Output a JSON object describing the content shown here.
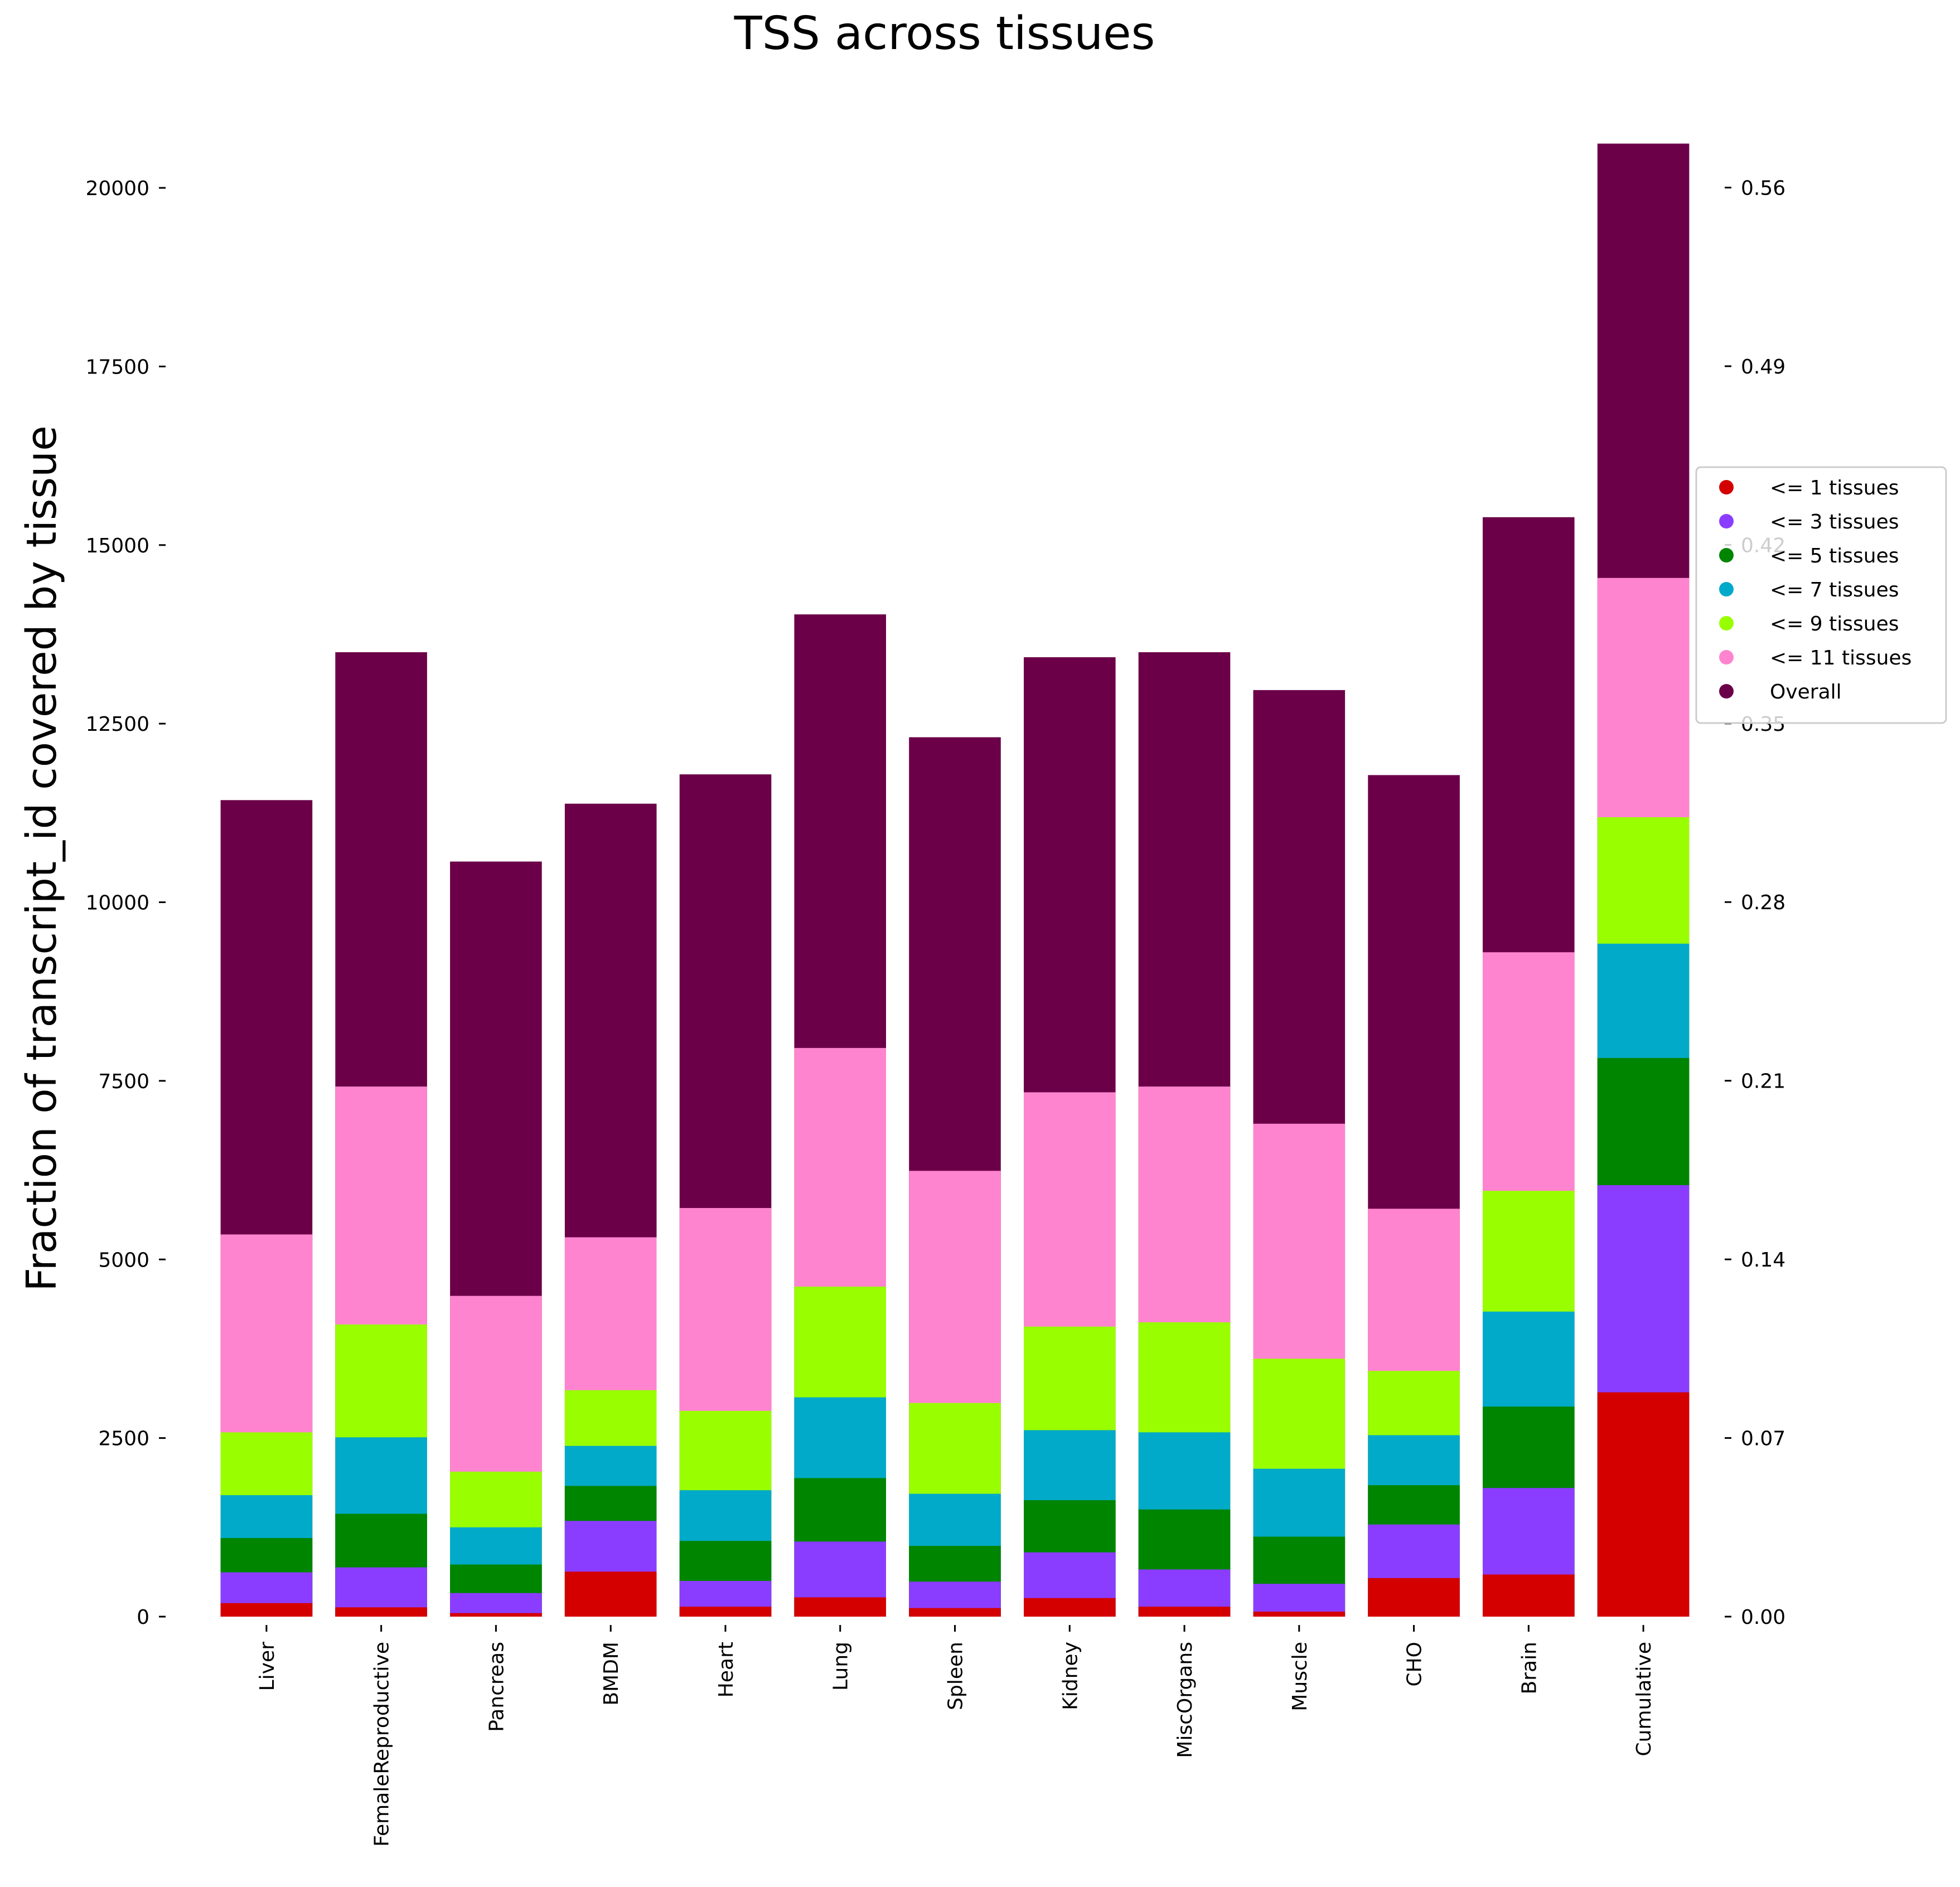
{
  "chart_data": {
    "type": "bar",
    "stacked": true,
    "title": "TSS across tissues",
    "ylabel": "Fraction of transcript_id covered by tissue",
    "ylim": [
      0,
      20640
    ],
    "yticks": [
      0,
      2500,
      5000,
      7500,
      10000,
      12500,
      15000,
      17500,
      20000
    ],
    "y2lim": [
      0,
      0.5778
    ],
    "y2ticks": [
      "0.00",
      "0.07",
      "0.14",
      "0.21",
      "0.28",
      "0.35",
      "0.42",
      "0.49",
      "0.56"
    ],
    "grid": false,
    "legend_position": "right",
    "categories": [
      "Liver",
      "FemaleReproductive",
      "Pancreas",
      "BMDM",
      "Heart",
      "Lung",
      "Spleen",
      "Kidney",
      "MiscOrgans",
      "Muscle",
      "CHO",
      "Brain",
      "Cumulative"
    ],
    "series": [
      {
        "name": "<= 1 tissues",
        "color": "#d40000",
        "values": [
          190,
          130,
          50,
          630,
          140,
          270,
          120,
          260,
          140,
          70,
          540,
          590,
          3140
        ]
      },
      {
        "name": "<= 3 tissues",
        "color": "#8b3dff",
        "values": [
          620,
          690,
          330,
          1340,
          500,
          1050,
          490,
          900,
          660,
          460,
          1290,
          1800,
          6040
        ]
      },
      {
        "name": "<= 5 tissues",
        "color": "#008500",
        "values": [
          1100,
          1440,
          730,
          1830,
          1060,
          1940,
          990,
          1630,
          1500,
          1120,
          1840,
          2940,
          7820
        ]
      },
      {
        "name": "<= 7 tissues",
        "color": "#00aac8",
        "values": [
          1700,
          2510,
          1250,
          2390,
          1770,
          3070,
          1720,
          2610,
          2580,
          2070,
          2540,
          4270,
          9420
        ]
      },
      {
        "name": "<= 9 tissues",
        "color": "#99ff00",
        "values": [
          2580,
          4090,
          2030,
          3170,
          2880,
          4620,
          2990,
          4060,
          4120,
          3610,
          3440,
          5960,
          11190
        ]
      },
      {
        "name": "<= 11 tissues",
        "color": "#ff84cf",
        "values": [
          5350,
          7420,
          4490,
          5310,
          5720,
          7960,
          6240,
          7340,
          7420,
          6900,
          5710,
          9300,
          14540
        ]
      },
      {
        "name": "Overall",
        "color": "#6b0049",
        "values": [
          11430,
          13500,
          10570,
          11380,
          11790,
          14030,
          12310,
          13430,
          13500,
          12970,
          11780,
          15390,
          20620
        ]
      }
    ]
  }
}
